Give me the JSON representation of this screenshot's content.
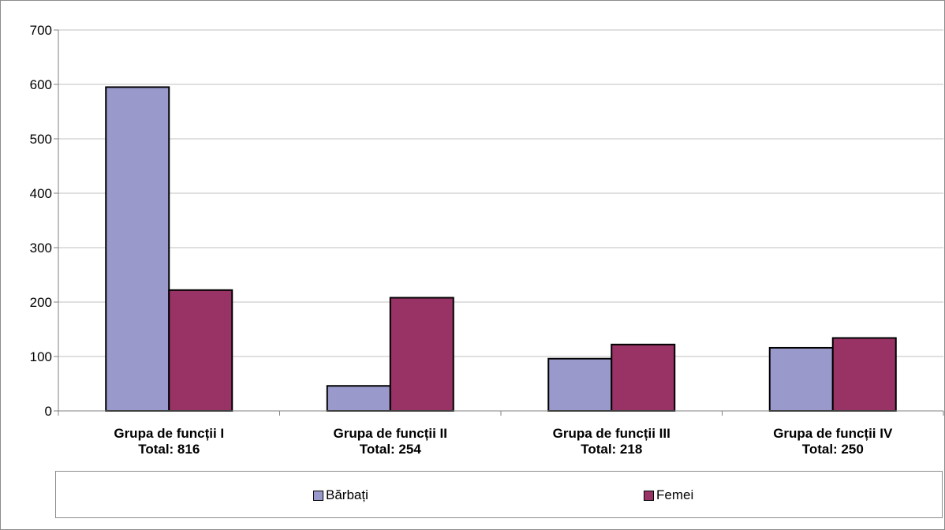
{
  "colors": {
    "barbati": "#9999cc",
    "femei": "#993366",
    "grid": "#c0c0c0",
    "axis": "#808080"
  },
  "chart_data": {
    "type": "bar",
    "categories": [
      [
        "Grupa de funcții I",
        "Total: 816"
      ],
      [
        "Grupa de funcții II",
        "Total: 254"
      ],
      [
        "Grupa de funcții III",
        "Total: 218"
      ],
      [
        "Grupa de funcții IV",
        "Total: 250"
      ]
    ],
    "series": [
      {
        "name": "Bărbați",
        "values": [
          595,
          46,
          96,
          116
        ]
      },
      {
        "name": "Femei",
        "values": [
          222,
          208,
          122,
          134
        ]
      }
    ],
    "ylim": [
      0,
      700
    ],
    "yticks": [
      "0",
      "100",
      "200",
      "300",
      "400",
      "500",
      "600",
      "700"
    ],
    "grid": true,
    "legend_position": "bottom"
  }
}
